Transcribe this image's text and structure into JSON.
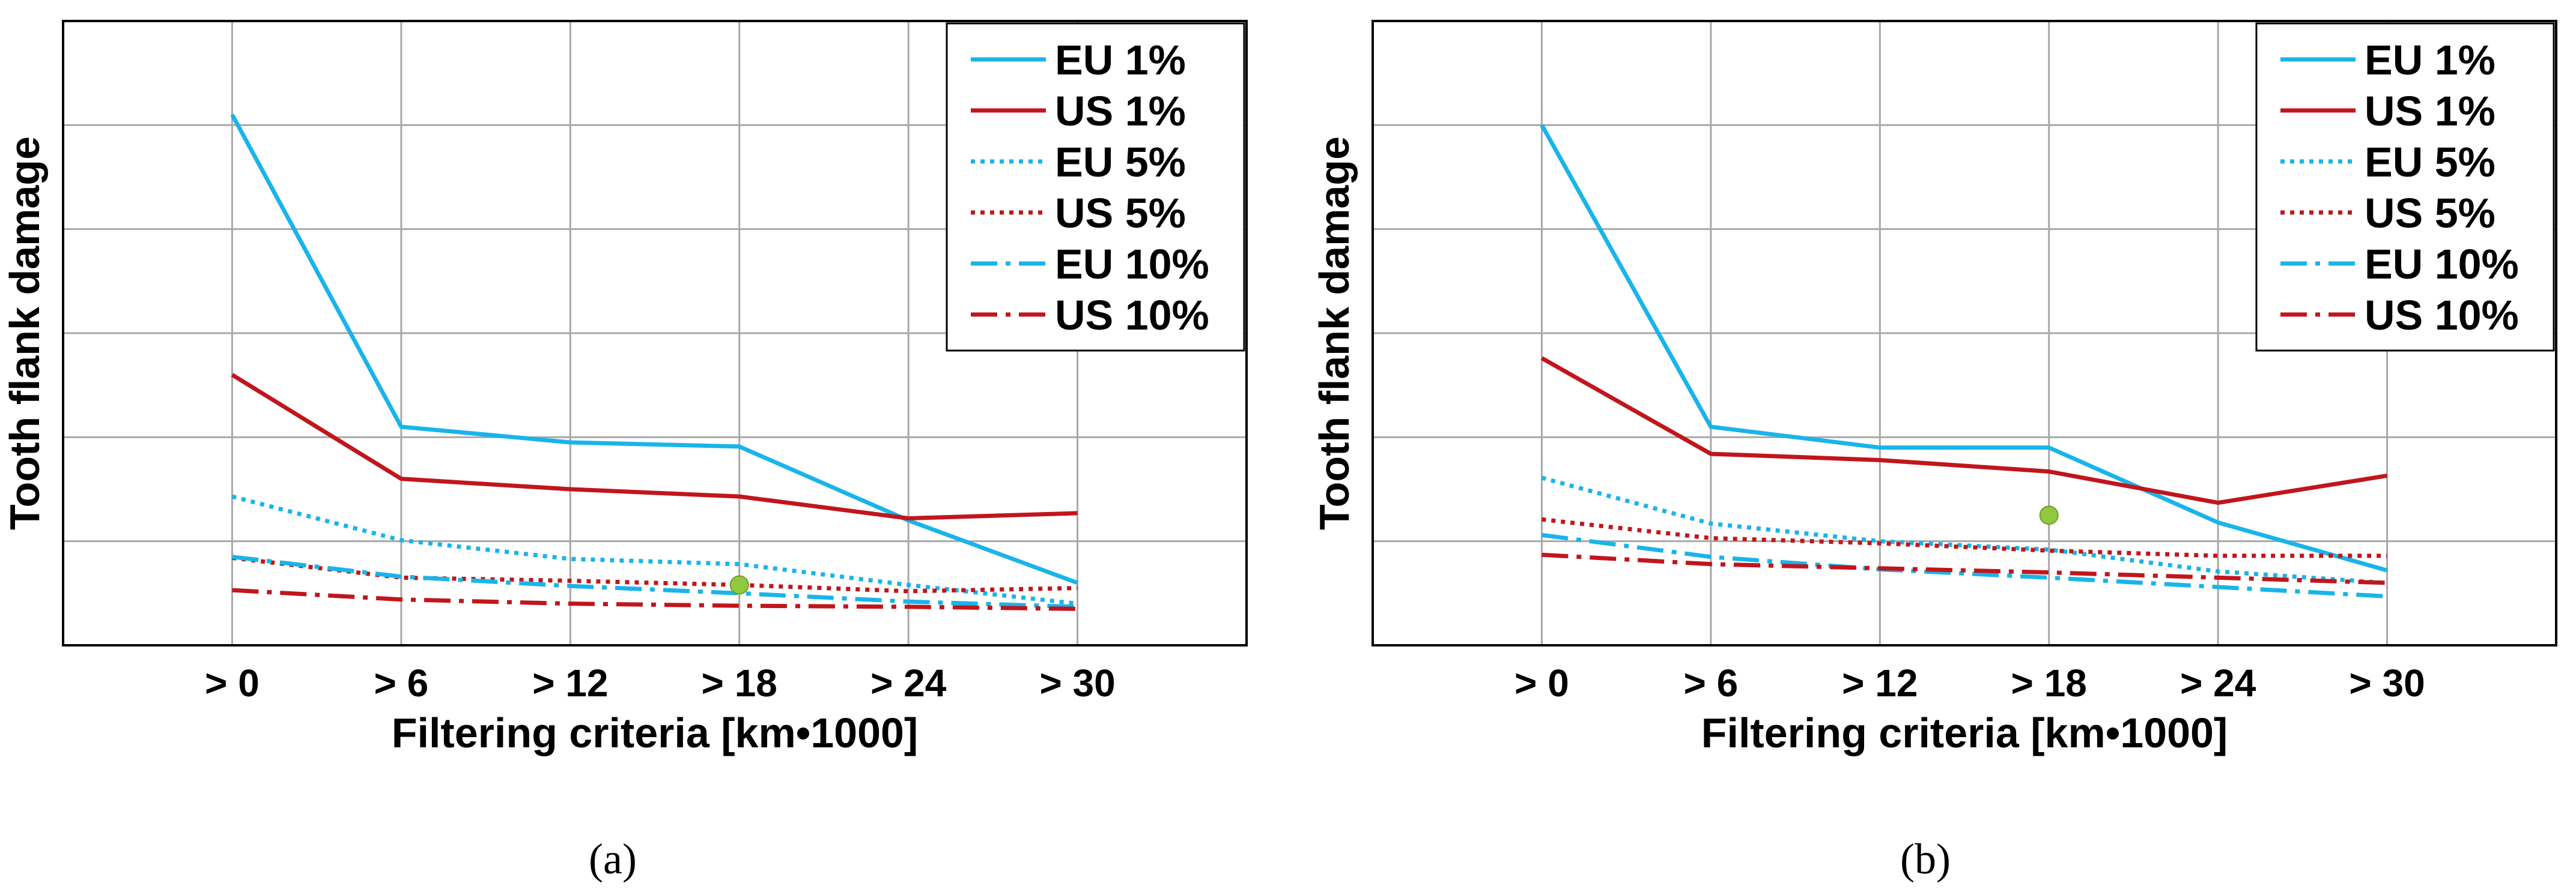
{
  "colors": {
    "eu": "#19b4ea",
    "us": "#c0161c",
    "grid": "#a8a8a8",
    "marker": "#92c83e"
  },
  "chart_data": [
    {
      "type": "line",
      "caption": "(a)",
      "xlabel": "Filtering criteria [km•1000]",
      "ylabel": "Tooth flank damage",
      "categories": [
        "> 0",
        "> 6",
        "> 12",
        "> 18",
        "> 24",
        "> 30"
      ],
      "ylim": [
        0,
        6
      ],
      "grid": true,
      "legend_position": "top-right",
      "series": [
        {
          "name": "EU 1%",
          "style": "solid",
          "color": "eu",
          "values": [
            5.1,
            2.1,
            1.95,
            1.91,
            1.2,
            0.6
          ]
        },
        {
          "name": "US 1%",
          "style": "solid",
          "color": "us",
          "values": [
            2.6,
            1.6,
            1.5,
            1.43,
            1.22,
            1.27
          ]
        },
        {
          "name": "EU 5%",
          "style": "dotted",
          "color": "eu",
          "values": [
            1.43,
            1.01,
            0.83,
            0.78,
            0.58,
            0.4
          ]
        },
        {
          "name": "US 5%",
          "style": "dotted",
          "color": "us",
          "values": [
            0.84,
            0.65,
            0.62,
            0.58,
            0.52,
            0.55
          ]
        },
        {
          "name": "EU 10%",
          "style": "dashdot",
          "color": "eu",
          "values": [
            0.85,
            0.66,
            0.57,
            0.5,
            0.42,
            0.37
          ]
        },
        {
          "name": "US 10%",
          "style": "dashdot",
          "color": "us",
          "values": [
            0.53,
            0.44,
            0.4,
            0.38,
            0.37,
            0.35
          ]
        }
      ],
      "markers": [
        {
          "category": "> 18",
          "value": 0.58
        }
      ]
    },
    {
      "type": "line",
      "caption": "(b)",
      "xlabel": "Filtering criteria [km•1000]",
      "ylabel": "Tooth flank damage",
      "categories": [
        "> 0",
        "> 6",
        "> 12",
        "> 18",
        "> 24",
        "> 30"
      ],
      "ylim": [
        0,
        6
      ],
      "grid": true,
      "legend_position": "top-right",
      "series": [
        {
          "name": "EU 1%",
          "style": "solid",
          "color": "eu",
          "values": [
            5.0,
            2.1,
            1.9,
            1.9,
            1.18,
            0.72
          ]
        },
        {
          "name": "US 1%",
          "style": "solid",
          "color": "us",
          "values": [
            2.76,
            1.84,
            1.78,
            1.67,
            1.37,
            1.63
          ]
        },
        {
          "name": "EU 5%",
          "style": "dotted",
          "color": "eu",
          "values": [
            1.61,
            1.17,
            1.0,
            0.92,
            0.71,
            0.6
          ]
        },
        {
          "name": "US 5%",
          "style": "dotted",
          "color": "us",
          "values": [
            1.21,
            1.03,
            0.98,
            0.91,
            0.86,
            0.86
          ]
        },
        {
          "name": "EU 10%",
          "style": "dashdot",
          "color": "eu",
          "values": [
            1.06,
            0.85,
            0.73,
            0.65,
            0.56,
            0.47
          ]
        },
        {
          "name": "US 10%",
          "style": "dashdot",
          "color": "us",
          "values": [
            0.87,
            0.78,
            0.74,
            0.7,
            0.65,
            0.6
          ]
        }
      ],
      "markers": [
        {
          "category": "> 18",
          "value": 1.25
        }
      ]
    }
  ]
}
